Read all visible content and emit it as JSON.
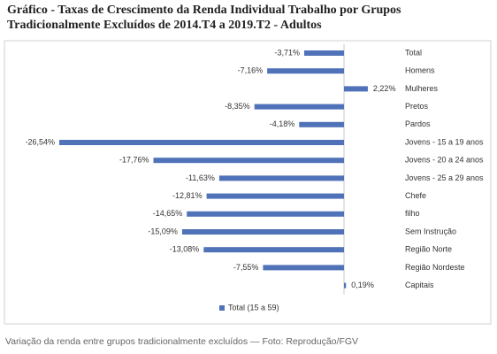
{
  "chart_data": {
    "type": "bar",
    "orientation": "horizontal",
    "title": [
      "Gráfico  - Taxas de Crescimento da Renda Individual Trabalho por Grupos",
      "Tradicionalmente Excluídos de 2014.T4 a 2019.T2 - Adultos"
    ],
    "categories": [
      "Total",
      "Homens",
      "Mulheres",
      "Pretos",
      "Pardos",
      "Jovens - 15 a 19 anos",
      "Jovens - 20 a 24 anos",
      "Jovens - 25 a 29 anos",
      "Chefe",
      "filho",
      "Sem Instrução",
      "Região Norte",
      "Região Nordeste",
      "Capitais"
    ],
    "series": [
      {
        "name": "Total (15 a 59)",
        "color": "#4f72b8",
        "values": [
          -3.71,
          -7.16,
          2.22,
          -8.35,
          -4.18,
          -26.54,
          -17.76,
          -11.63,
          -12.81,
          -14.65,
          -15.09,
          -13.08,
          -7.55,
          0.19
        ],
        "value_labels": [
          "-3,71%",
          "-7,16%",
          "2,22%",
          "-8,35%",
          "-4,18%",
          "-26,54%",
          "-17,76%",
          "-11,63%",
          "-12,81%",
          "-14,65%",
          "-15,09%",
          "-13,08%",
          "-7,55%",
          "0,19%"
        ]
      }
    ],
    "legend": "bottom",
    "caption": "Variação da renda entre grupos tradicionalmente excluídos — Foto: Reprodução/FGV"
  }
}
